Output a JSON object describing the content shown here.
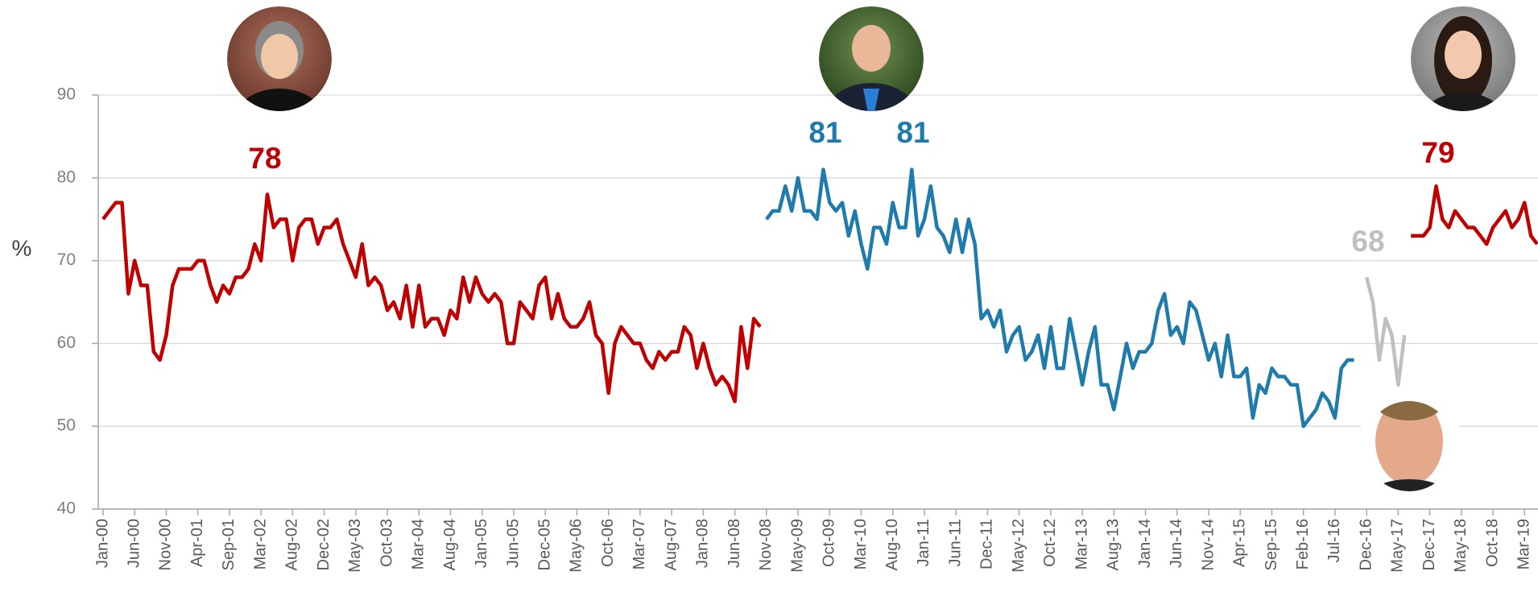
{
  "chart_data": {
    "type": "line",
    "y_label": "%",
    "ylim": [
      40,
      90
    ],
    "yticks": [
      40,
      50,
      60,
      70,
      80,
      90
    ],
    "grid": true,
    "categories": [
      "Jan-00",
      null,
      null,
      null,
      null,
      "Jun-00",
      null,
      null,
      null,
      null,
      "Nov-00",
      null,
      null,
      null,
      null,
      "Apr-01",
      null,
      null,
      null,
      null,
      "Sep-01",
      null,
      null,
      null,
      null,
      "Mar-02",
      null,
      null,
      null,
      null,
      "Aug-02",
      null,
      null,
      null,
      null,
      "Dec-02",
      null,
      null,
      null,
      null,
      "May-03",
      null,
      null,
      null,
      null,
      "Oct-03",
      null,
      null,
      null,
      null,
      "Mar-04",
      null,
      null,
      null,
      null,
      "Aug-04",
      null,
      null,
      null,
      null,
      "Jan-05",
      null,
      null,
      null,
      null,
      "Jun-05",
      null,
      null,
      null,
      null,
      "Dec-05",
      null,
      null,
      null,
      null,
      "May-06",
      null,
      null,
      null,
      null,
      "Oct-06",
      null,
      null,
      null,
      null,
      "Mar-07",
      null,
      null,
      null,
      null,
      "Aug-07",
      null,
      null,
      null,
      null,
      "Jan-08",
      null,
      null,
      null,
      null,
      "Jun-08",
      null,
      null,
      null,
      null,
      "Nov-08",
      null,
      null,
      null,
      null,
      "May-09",
      null,
      null,
      null,
      null,
      "Oct-09",
      null,
      null,
      null,
      null,
      "Mar-10",
      null,
      null,
      null,
      null,
      "Aug-10",
      null,
      null,
      null,
      null,
      "Jan-11",
      null,
      null,
      null,
      null,
      "Jun-11",
      null,
      null,
      null,
      null,
      "Dec-11",
      null,
      null,
      null,
      null,
      "May-12",
      null,
      null,
      null,
      null,
      "Oct-12",
      null,
      null,
      null,
      null,
      "Mar-13",
      null,
      null,
      null,
      null,
      "Aug-13",
      null,
      null,
      null,
      null,
      "Jan-14",
      null,
      null,
      null,
      null,
      "Jun-14",
      null,
      null,
      null,
      null,
      "Nov-14",
      null,
      null,
      null,
      null,
      "Apr-15",
      null,
      null,
      null,
      null,
      "Sep-15",
      null,
      null,
      null,
      null,
      "Feb-16",
      null,
      null,
      null,
      null,
      "Jul-16",
      null,
      null,
      null,
      null,
      "Dec-16",
      null,
      null,
      null,
      null,
      "May-17",
      null,
      null,
      null,
      null,
      "Dec-17",
      null,
      null,
      null,
      null,
      "May-18",
      null,
      null,
      null,
      null,
      "Oct-18",
      null,
      null,
      null,
      null,
      "Mar-19",
      null,
      null
    ],
    "series": [
      {
        "color": "#c00000",
        "values": [
          75,
          76,
          77,
          77,
          66,
          70,
          67,
          67,
          59,
          58,
          61,
          67,
          69,
          69,
          69,
          70,
          70,
          67,
          65,
          67,
          66,
          68,
          68,
          69,
          72,
          70,
          78,
          74,
          75,
          75,
          70,
          74,
          75,
          75,
          72,
          74,
          74,
          75,
          72,
          70,
          68,
          72,
          67,
          68,
          67,
          64,
          65,
          63,
          67,
          62,
          67,
          62,
          63,
          63,
          61,
          64,
          63,
          68,
          65,
          68,
          66,
          65,
          66,
          65,
          60,
          60,
          65,
          64,
          63,
          67,
          68,
          63,
          66,
          63,
          62,
          62,
          63,
          65,
          61,
          60,
          54,
          60,
          62,
          61,
          60,
          60,
          58,
          57,
          59,
          58,
          59,
          59,
          62,
          61,
          57,
          60,
          57,
          55,
          56,
          55,
          53,
          62,
          57,
          63,
          62,
          null,
          null,
          null,
          null,
          null,
          null,
          null,
          null,
          null,
          null,
          null,
          null,
          null,
          null,
          null,
          null,
          null,
          null,
          null,
          null,
          null,
          null,
          null,
          null,
          null,
          null,
          null,
          null,
          null,
          null,
          null,
          null,
          null,
          null,
          null,
          null,
          null,
          null,
          null,
          null,
          null,
          null,
          null,
          null,
          null,
          null,
          null,
          null,
          null,
          null,
          null,
          null,
          null,
          null,
          null,
          null,
          null,
          null,
          null,
          null,
          null,
          null,
          null,
          null,
          null,
          null,
          null,
          null,
          null,
          null,
          null,
          null,
          null,
          null,
          null,
          null,
          null,
          null,
          null,
          null,
          null,
          null,
          null,
          null,
          null,
          null,
          null,
          null,
          null,
          null,
          null,
          null,
          null,
          null,
          null,
          null,
          null,
          null,
          null,
          null,
          null,
          null,
          null,
          null,
          null,
          null,
          null,
          null,
          null,
          null,
          null,
          null,
          null,
          null,
          null,
          null,
          null,
          null,
          null,
          null,
          null,
          null,
          null
        ]
      },
      {
        "color": "#1f7bab",
        "values": [
          null,
          null,
          null,
          null,
          null,
          null,
          null,
          null,
          null,
          null,
          null,
          null,
          null,
          null,
          null,
          null,
          null,
          null,
          null,
          null,
          null,
          null,
          null,
          null,
          null,
          null,
          null,
          null,
          null,
          null,
          null,
          null,
          null,
          null,
          null,
          null,
          null,
          null,
          null,
          null,
          null,
          null,
          null,
          null,
          null,
          null,
          null,
          null,
          null,
          null,
          null,
          null,
          null,
          null,
          null,
          null,
          null,
          null,
          null,
          null,
          null,
          null,
          null,
          null,
          null,
          null,
          null,
          null,
          null,
          null,
          null,
          null,
          null,
          null,
          null,
          null,
          null,
          null,
          null,
          null,
          null,
          null,
          null,
          null,
          null,
          null,
          null,
          null,
          null,
          null,
          null,
          null,
          null,
          null,
          null,
          null,
          null,
          null,
          null,
          null,
          null,
          null,
          null,
          null,
          null,
          75,
          76,
          76,
          79,
          76,
          80,
          76,
          76,
          75,
          81,
          77,
          76,
          77,
          73,
          76,
          72,
          69,
          74,
          74,
          72,
          77,
          74,
          74,
          81,
          73,
          75,
          79,
          74,
          73,
          71,
          75,
          71,
          75,
          72,
          63,
          64,
          62,
          64,
          59,
          61,
          62,
          58,
          59,
          61,
          57,
          62,
          57,
          57,
          63,
          59,
          55,
          59,
          62,
          55,
          55,
          52,
          56,
          60,
          57,
          59,
          59,
          60,
          64,
          66,
          61,
          62,
          60,
          65,
          64,
          61,
          58,
          60,
          56,
          61,
          56,
          56,
          57,
          51,
          55,
          54,
          57,
          56,
          56,
          55,
          55,
          50,
          51,
          52,
          54,
          53,
          51,
          57,
          58,
          58,
          null,
          null,
          null,
          null,
          null,
          null,
          null,
          null,
          null,
          null,
          null,
          null,
          null,
          null,
          null,
          null,
          null,
          null,
          null,
          null,
          null,
          null,
          null,
          null,
          null,
          null,
          null,
          null,
          null
        ]
      },
      {
        "color": "#bfbfbf",
        "values": [
          null,
          null,
          null,
          null,
          null,
          null,
          null,
          null,
          null,
          null,
          null,
          null,
          null,
          null,
          null,
          null,
          null,
          null,
          null,
          null,
          null,
          null,
          null,
          null,
          null,
          null,
          null,
          null,
          null,
          null,
          null,
          null,
          null,
          null,
          null,
          null,
          null,
          null,
          null,
          null,
          null,
          null,
          null,
          null,
          null,
          null,
          null,
          null,
          null,
          null,
          null,
          null,
          null,
          null,
          null,
          null,
          null,
          null,
          null,
          null,
          null,
          null,
          null,
          null,
          null,
          null,
          null,
          null,
          null,
          null,
          null,
          null,
          null,
          null,
          null,
          null,
          null,
          null,
          null,
          null,
          null,
          null,
          null,
          null,
          null,
          null,
          null,
          null,
          null,
          null,
          null,
          null,
          null,
          null,
          null,
          null,
          null,
          null,
          null,
          null,
          null,
          null,
          null,
          null,
          null,
          null,
          null,
          null,
          null,
          null,
          null,
          null,
          null,
          null,
          null,
          null,
          null,
          null,
          null,
          null,
          null,
          null,
          null,
          null,
          null,
          null,
          null,
          null,
          null,
          null,
          null,
          null,
          null,
          null,
          null,
          null,
          null,
          null,
          null,
          null,
          null,
          null,
          null,
          null,
          null,
          null,
          null,
          null,
          null,
          null,
          null,
          null,
          null,
          null,
          null,
          null,
          null,
          null,
          null,
          null,
          null,
          null,
          null,
          null,
          null,
          null,
          null,
          null,
          null,
          null,
          null,
          null,
          null,
          null,
          null,
          null,
          null,
          null,
          null,
          null,
          null,
          null,
          null,
          null,
          null,
          null,
          null,
          null,
          null,
          null,
          null,
          null,
          null,
          null,
          null,
          null,
          null,
          null,
          null,
          null,
          68,
          65,
          58,
          63,
          61,
          55,
          61,
          null,
          null,
          null,
          null,
          null,
          null,
          null,
          null,
          null,
          null,
          null,
          null,
          null,
          null,
          null,
          null,
          null,
          null,
          null,
          null,
          null
        ]
      },
      {
        "color": "#c00000",
        "values": [
          null,
          null,
          null,
          null,
          null,
          null,
          null,
          null,
          null,
          null,
          null,
          null,
          null,
          null,
          null,
          null,
          null,
          null,
          null,
          null,
          null,
          null,
          null,
          null,
          null,
          null,
          null,
          null,
          null,
          null,
          null,
          null,
          null,
          null,
          null,
          null,
          null,
          null,
          null,
          null,
          null,
          null,
          null,
          null,
          null,
          null,
          null,
          null,
          null,
          null,
          null,
          null,
          null,
          null,
          null,
          null,
          null,
          null,
          null,
          null,
          null,
          null,
          null,
          null,
          null,
          null,
          null,
          null,
          null,
          null,
          null,
          null,
          null,
          null,
          null,
          null,
          null,
          null,
          null,
          null,
          null,
          null,
          null,
          null,
          null,
          null,
          null,
          null,
          null,
          null,
          null,
          null,
          null,
          null,
          null,
          null,
          null,
          null,
          null,
          null,
          null,
          null,
          null,
          null,
          null,
          null,
          null,
          null,
          null,
          null,
          null,
          null,
          null,
          null,
          null,
          null,
          null,
          null,
          null,
          null,
          null,
          null,
          null,
          null,
          null,
          null,
          null,
          null,
          null,
          null,
          null,
          null,
          null,
          null,
          null,
          null,
          null,
          null,
          null,
          null,
          null,
          null,
          null,
          null,
          null,
          null,
          null,
          null,
          null,
          null,
          null,
          null,
          null,
          null,
          null,
          null,
          null,
          null,
          null,
          null,
          null,
          null,
          null,
          null,
          null,
          null,
          null,
          null,
          null,
          null,
          null,
          null,
          null,
          null,
          null,
          null,
          null,
          null,
          null,
          null,
          null,
          null,
          null,
          null,
          null,
          null,
          null,
          null,
          null,
          null,
          null,
          null,
          null,
          null,
          null,
          null,
          null,
          null,
          null,
          null,
          null,
          null,
          null,
          null,
          null,
          null,
          null,
          73,
          73,
          73,
          74,
          79,
          75,
          74,
          76,
          75,
          74,
          74,
          73,
          72,
          74,
          75,
          76,
          74,
          75,
          77,
          73,
          72
        ]
      }
    ],
    "annotations": [
      "78",
      "81",
      "81",
      "68",
      "79"
    ]
  }
}
